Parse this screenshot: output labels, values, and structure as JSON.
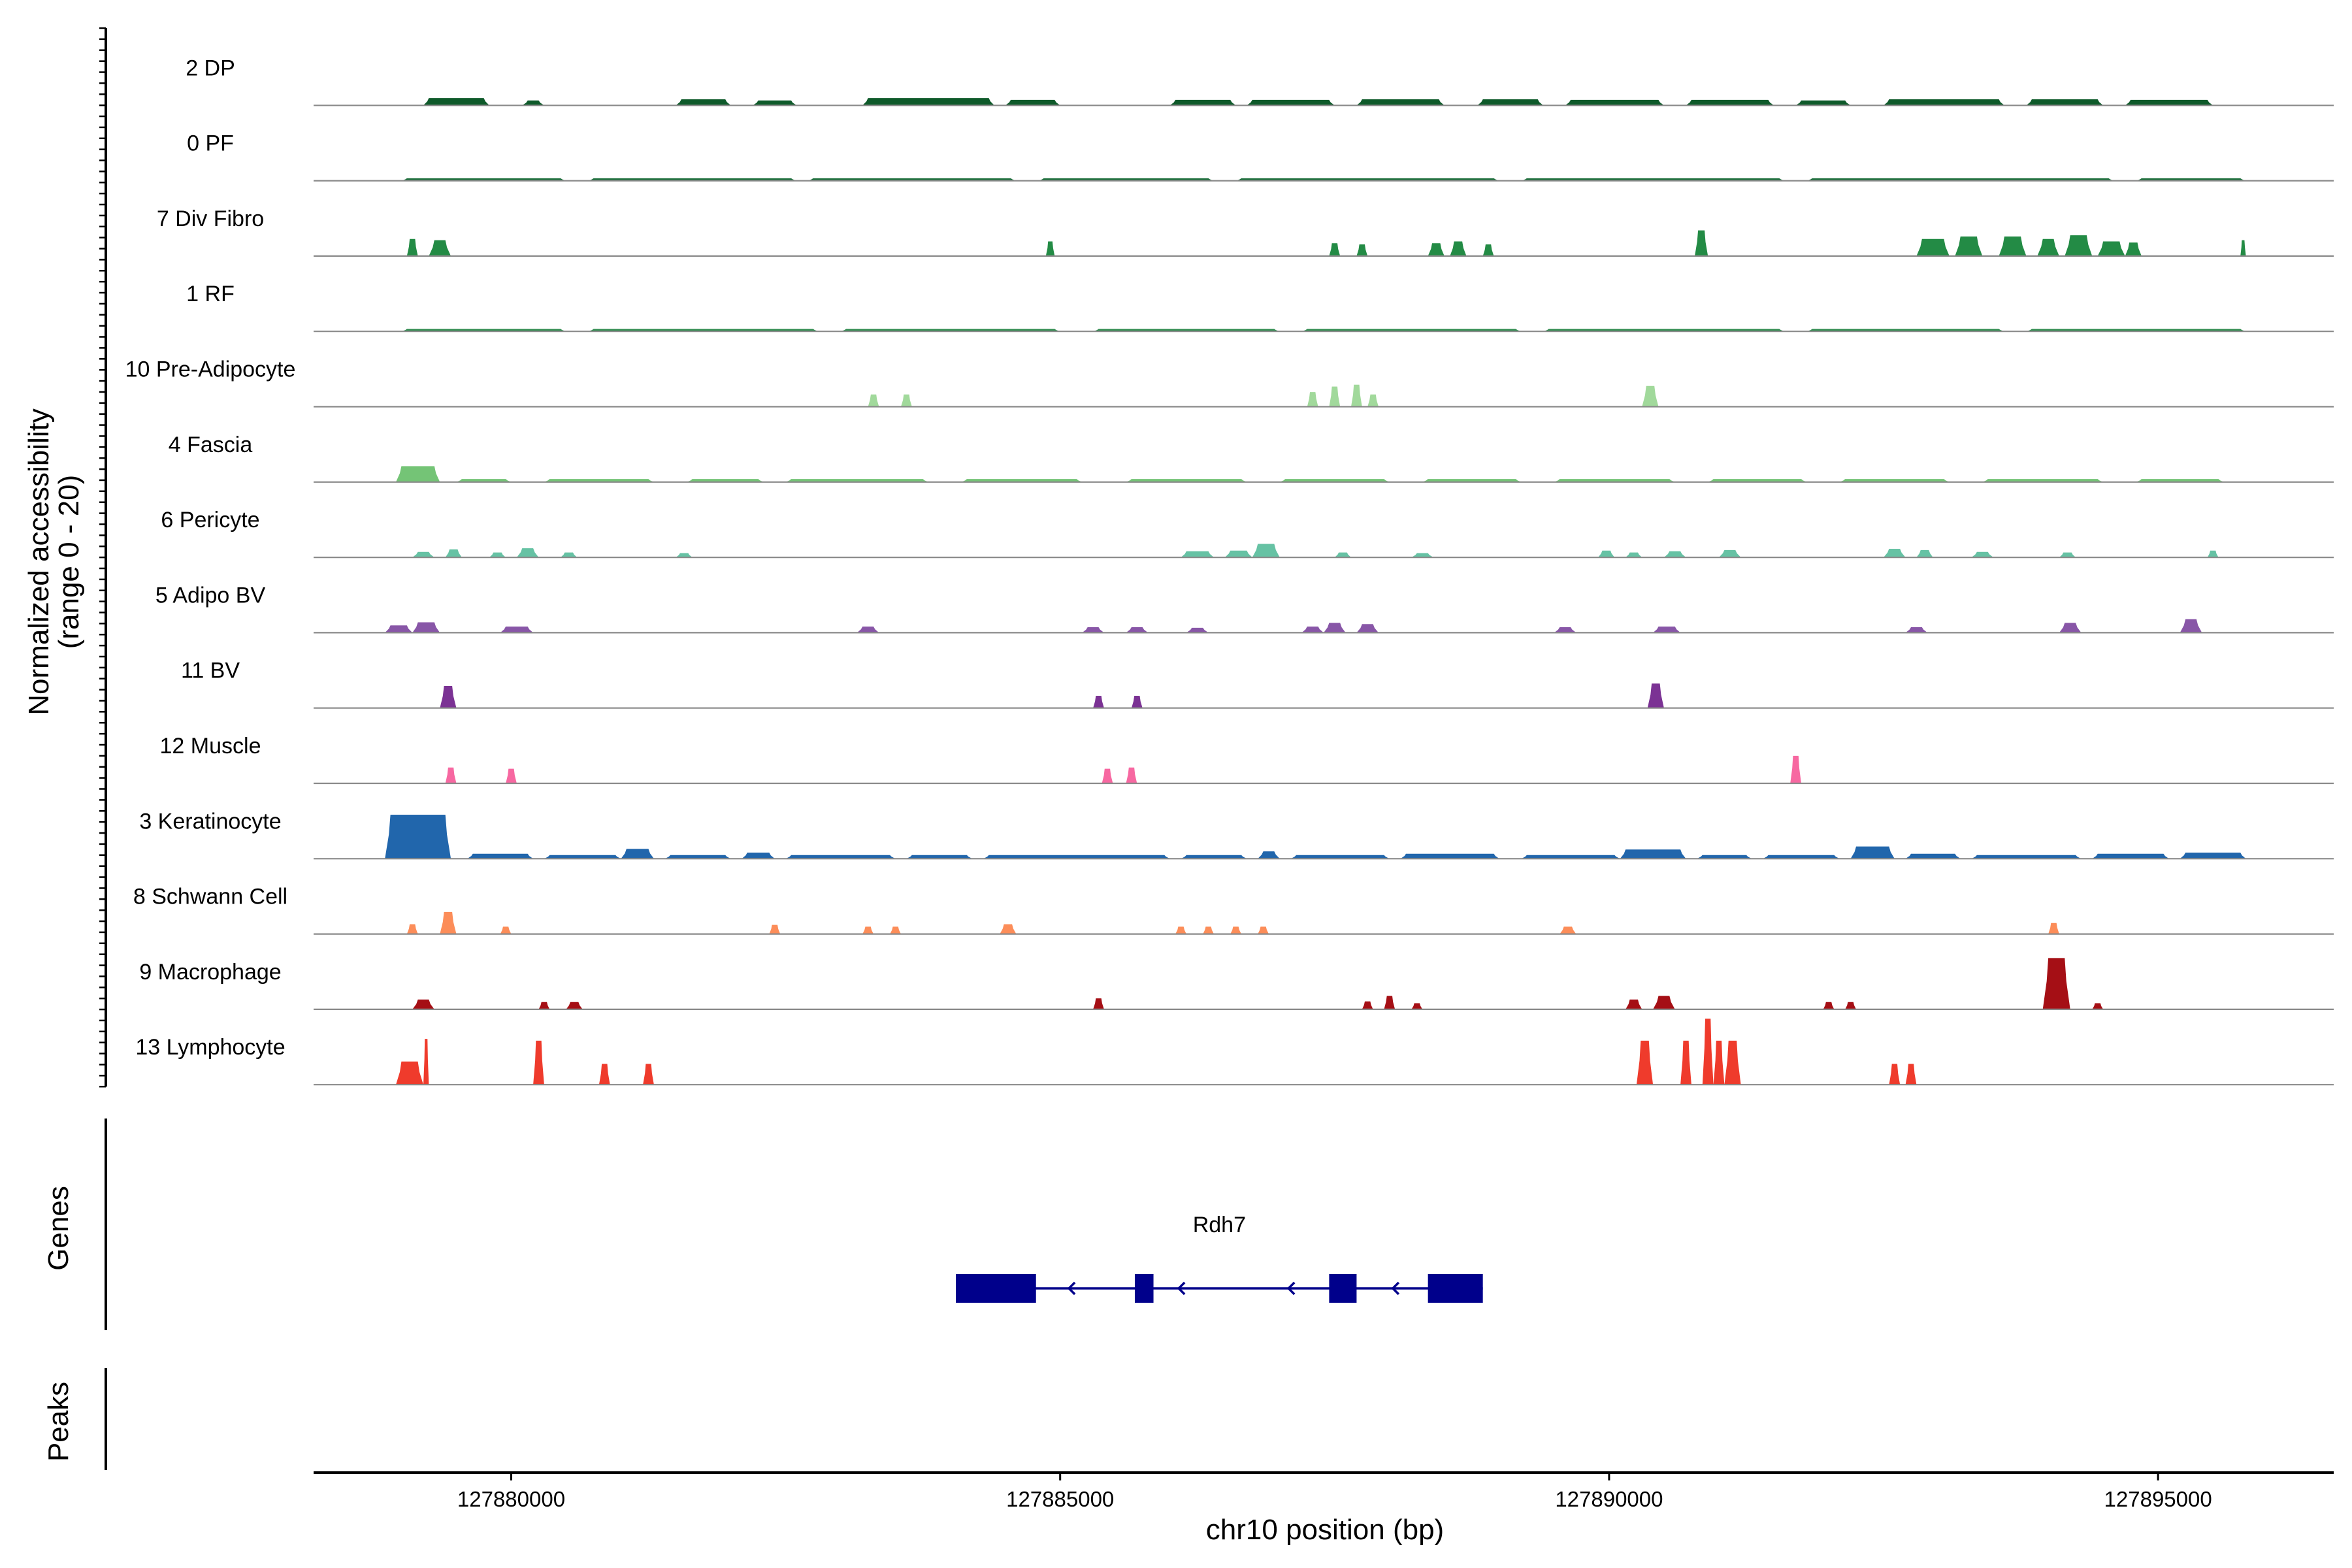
{
  "chart_data": {
    "type": "area",
    "chromosome": "chr10",
    "xlabel": "chr10 position (bp)",
    "ylabel_line1": "Normalized accessibility",
    "ylabel_line2": "(range 0 - 20)",
    "ylim": [
      0,
      20
    ],
    "xlim": [
      127878200,
      127896600
    ],
    "x_ticks": [
      127880000,
      127885000,
      127890000,
      127895000
    ],
    "tracks": [
      {
        "name": "2 DP",
        "color": "#0e5a2a",
        "regions": [
          [
            127879200,
            127879800,
            1.2
          ],
          [
            127880100,
            127880300,
            0.8
          ],
          [
            127881500,
            127882000,
            1.0
          ],
          [
            127882200,
            127882600,
            0.8
          ],
          [
            127883200,
            127884400,
            1.2
          ],
          [
            127884500,
            127885000,
            0.9
          ],
          [
            127886000,
            127886600,
            0.9
          ],
          [
            127886700,
            127887500,
            0.9
          ],
          [
            127887700,
            127888500,
            1.0
          ],
          [
            127888800,
            127889400,
            1.0
          ],
          [
            127889600,
            127890500,
            0.9
          ],
          [
            127890700,
            127891500,
            0.9
          ],
          [
            127891700,
            127892200,
            0.8
          ],
          [
            127892500,
            127893600,
            1.0
          ],
          [
            127893800,
            127894500,
            1.0
          ],
          [
            127894700,
            127895500,
            0.9
          ]
        ]
      },
      {
        "name": "0 PF",
        "color": "#1b6e3a",
        "regions": [
          [
            127879000,
            127880500,
            0.4
          ],
          [
            127880700,
            127882600,
            0.4
          ],
          [
            127882700,
            127884600,
            0.4
          ],
          [
            127884800,
            127886400,
            0.4
          ],
          [
            127886600,
            127889000,
            0.4
          ],
          [
            127889200,
            127891600,
            0.4
          ],
          [
            127891800,
            127894600,
            0.4
          ],
          [
            127894800,
            127895800,
            0.4
          ]
        ]
      },
      {
        "name": "7 Div Fibro",
        "color": "#238b45",
        "regions": [
          [
            127879050,
            127879150,
            2.8
          ],
          [
            127879250,
            127879450,
            2.6
          ],
          [
            127884870,
            127884950,
            2.4
          ],
          [
            127887450,
            127887550,
            2.1
          ],
          [
            127887700,
            127887800,
            1.9
          ],
          [
            127888350,
            127888500,
            2.1
          ],
          [
            127888550,
            127888700,
            2.4
          ],
          [
            127888850,
            127888950,
            1.9
          ],
          [
            127890780,
            127890900,
            4.2
          ],
          [
            127892800,
            127893100,
            2.8
          ],
          [
            127893150,
            127893400,
            3.2
          ],
          [
            127893550,
            127893800,
            3.2
          ],
          [
            127893900,
            127894100,
            2.8
          ],
          [
            127894150,
            127894400,
            3.4
          ],
          [
            127894450,
            127894700,
            2.4
          ],
          [
            127894700,
            127894850,
            2.2
          ],
          [
            127895750,
            127895800,
            2.6
          ]
        ]
      },
      {
        "name": "1 RF",
        "color": "#2e8b4e",
        "regions": [
          [
            127879000,
            127880500,
            0.4
          ],
          [
            127880700,
            127882800,
            0.4
          ],
          [
            127883000,
            127885000,
            0.4
          ],
          [
            127885300,
            127887000,
            0.4
          ],
          [
            127887200,
            127889200,
            0.4
          ],
          [
            127889400,
            127891600,
            0.4
          ],
          [
            127891800,
            127893600,
            0.4
          ],
          [
            127893800,
            127895800,
            0.4
          ]
        ]
      },
      {
        "name": "10 Pre-Adipocyte",
        "color": "#a1d99b",
        "regions": [
          [
            127883250,
            127883350,
            2.0
          ],
          [
            127883550,
            127883650,
            2.0
          ],
          [
            127887250,
            127887350,
            2.4
          ],
          [
            127887450,
            127887550,
            3.3
          ],
          [
            127887650,
            127887750,
            3.6
          ],
          [
            127887800,
            127887900,
            2.0
          ],
          [
            127890300,
            127890450,
            3.4
          ]
        ]
      },
      {
        "name": "4 Fascia",
        "color": "#74c476",
        "regions": [
          [
            127878950,
            127879350,
            2.6
          ],
          [
            127879500,
            127880000,
            0.5
          ],
          [
            127880300,
            127881300,
            0.5
          ],
          [
            127881600,
            127882300,
            0.5
          ],
          [
            127882500,
            127883800,
            0.5
          ],
          [
            127884100,
            127885200,
            0.5
          ],
          [
            127885600,
            127886700,
            0.5
          ],
          [
            127887000,
            127888000,
            0.5
          ],
          [
            127888300,
            127889200,
            0.5
          ],
          [
            127889500,
            127890600,
            0.5
          ],
          [
            127890900,
            127891800,
            0.5
          ],
          [
            127892100,
            127893100,
            0.5
          ],
          [
            127893400,
            127894500,
            0.5
          ],
          [
            127894800,
            127895600,
            0.5
          ]
        ]
      },
      {
        "name": "6 Pericyte",
        "color": "#66c2a4",
        "regions": [
          [
            127879100,
            127879300,
            0.9
          ],
          [
            127879400,
            127879550,
            1.3
          ],
          [
            127879800,
            127879950,
            0.8
          ],
          [
            127880050,
            127880250,
            1.5
          ],
          [
            127880450,
            127880600,
            0.8
          ],
          [
            127881500,
            127881650,
            0.7
          ],
          [
            127886100,
            127886400,
            1.0
          ],
          [
            127886500,
            127886750,
            1.1
          ],
          [
            127886750,
            127887000,
            2.2
          ],
          [
            127887500,
            127887650,
            0.8
          ],
          [
            127888200,
            127888400,
            0.7
          ],
          [
            127889900,
            127890050,
            1.1
          ],
          [
            127890150,
            127890300,
            0.8
          ],
          [
            127890500,
            127890700,
            1.0
          ],
          [
            127891000,
            127891200,
            1.2
          ],
          [
            127892500,
            127892700,
            1.4
          ],
          [
            127892800,
            127892950,
            1.2
          ],
          [
            127893300,
            127893500,
            0.9
          ],
          [
            127894100,
            127894250,
            0.8
          ],
          [
            127895450,
            127895550,
            1.1
          ]
        ]
      },
      {
        "name": "5 Adipo BV",
        "color": "#8856a7",
        "regions": [
          [
            127878850,
            127879100,
            1.2
          ],
          [
            127879100,
            127879350,
            1.7
          ],
          [
            127879900,
            127880200,
            1.0
          ],
          [
            127883150,
            127883350,
            1.0
          ],
          [
            127885200,
            127885400,
            0.9
          ],
          [
            127885600,
            127885800,
            0.9
          ],
          [
            127886150,
            127886350,
            0.8
          ],
          [
            127887200,
            127887400,
            1.0
          ],
          [
            127887400,
            127887600,
            1.6
          ],
          [
            127887700,
            127887900,
            1.4
          ],
          [
            127889500,
            127889700,
            0.9
          ],
          [
            127890400,
            127890650,
            1.0
          ],
          [
            127892700,
            127892900,
            0.9
          ],
          [
            127894100,
            127894300,
            1.6
          ],
          [
            127895200,
            127895400,
            2.2
          ]
        ]
      },
      {
        "name": "11 BV",
        "color": "#7b3294",
        "regions": [
          [
            127879350,
            127879500,
            3.6
          ],
          [
            127885300,
            127885400,
            2.0
          ],
          [
            127885650,
            127885750,
            2.0
          ],
          [
            127890350,
            127890500,
            4.0
          ]
        ]
      },
      {
        "name": "12 Muscle",
        "color": "#f768a1",
        "regions": [
          [
            127879400,
            127879500,
            2.6
          ],
          [
            127879950,
            127880050,
            2.4
          ],
          [
            127885380,
            127885480,
            2.4
          ],
          [
            127885600,
            127885700,
            2.6
          ],
          [
            127891650,
            127891750,
            4.5
          ]
        ]
      },
      {
        "name": "3 Keratinocyte",
        "color": "#2166ac",
        "regions": [
          [
            127878850,
            127879450,
            7.2
          ],
          [
            127879600,
            127880200,
            0.8
          ],
          [
            127880300,
            127881000,
            0.6
          ],
          [
            127881000,
            127881300,
            1.6
          ],
          [
            127881400,
            127882000,
            0.6
          ],
          [
            127882100,
            127882400,
            1.0
          ],
          [
            127882500,
            127883500,
            0.6
          ],
          [
            127883600,
            127884200,
            0.6
          ],
          [
            127884300,
            127886000,
            0.6
          ],
          [
            127886100,
            127886700,
            0.6
          ],
          [
            127886800,
            127887000,
            1.2
          ],
          [
            127887100,
            127888000,
            0.6
          ],
          [
            127888100,
            127889000,
            0.8
          ],
          [
            127889200,
            127890100,
            0.6
          ],
          [
            127890100,
            127890700,
            1.5
          ],
          [
            127890800,
            127891300,
            0.6
          ],
          [
            127891400,
            127892100,
            0.6
          ],
          [
            127892200,
            127892600,
            2.0
          ],
          [
            127892700,
            127893200,
            0.8
          ],
          [
            127893300,
            127894300,
            0.6
          ],
          [
            127894400,
            127895100,
            0.8
          ],
          [
            127895200,
            127895800,
            1.0
          ]
        ]
      },
      {
        "name": "8 Schwann Cell",
        "color": "#fc8d59",
        "regions": [
          [
            127879050,
            127879150,
            1.6
          ],
          [
            127879350,
            127879500,
            3.6
          ],
          [
            127879900,
            127880000,
            1.2
          ],
          [
            127882350,
            127882450,
            1.5
          ],
          [
            127883200,
            127883300,
            1.2
          ],
          [
            127883450,
            127883550,
            1.2
          ],
          [
            127884450,
            127884600,
            1.6
          ],
          [
            127886050,
            127886150,
            1.2
          ],
          [
            127886300,
            127886400,
            1.2
          ],
          [
            127886550,
            127886650,
            1.2
          ],
          [
            127886800,
            127886900,
            1.2
          ],
          [
            127889550,
            127889700,
            1.2
          ],
          [
            127894000,
            127894100,
            1.8
          ]
        ]
      },
      {
        "name": "9 Macrophage",
        "color": "#a50f15",
        "regions": [
          [
            127879100,
            127879300,
            1.6
          ],
          [
            127880250,
            127880350,
            1.2
          ],
          [
            127880500,
            127880650,
            1.2
          ],
          [
            127885300,
            127885400,
            1.8
          ],
          [
            127887750,
            127887850,
            1.3
          ],
          [
            127887950,
            127888050,
            2.2
          ],
          [
            127888200,
            127888300,
            1.0
          ],
          [
            127890150,
            127890300,
            1.6
          ],
          [
            127890400,
            127890600,
            2.2
          ],
          [
            127891950,
            127892050,
            1.2
          ],
          [
            127892150,
            127892250,
            1.2
          ],
          [
            127893950,
            127894200,
            8.4
          ],
          [
            127894400,
            127894500,
            1.0
          ]
        ]
      },
      {
        "name": "13 Lymphocyte",
        "color": "#ef3b2c",
        "regions": [
          [
            127878950,
            127879200,
            3.8
          ],
          [
            127879200,
            127879250,
            7.5
          ],
          [
            127880200,
            127880300,
            7.2
          ],
          [
            127880800,
            127880900,
            3.4
          ],
          [
            127881200,
            127881300,
            3.4
          ],
          [
            127890250,
            127890400,
            7.2
          ],
          [
            127890650,
            127890750,
            7.2
          ],
          [
            127890850,
            127890950,
            10.8
          ],
          [
            127890950,
            127891050,
            7.2
          ],
          [
            127891050,
            127891200,
            7.2
          ],
          [
            127892550,
            127892650,
            3.4
          ],
          [
            127892700,
            127892800,
            3.4
          ]
        ]
      }
    ],
    "genes_label": "Genes",
    "peaks_label": "Peaks",
    "gene": {
      "name": "Rdh7",
      "color": "#00008b",
      "strand": "-",
      "start": 127884050,
      "end": 127888850,
      "exons": [
        [
          127884050,
          127884780
        ],
        [
          127885680,
          127885850
        ],
        [
          127887450,
          127887700
        ],
        [
          127888350,
          127888850
        ]
      ],
      "arrows": [
        127885080,
        127886080,
        127887080,
        127888030
      ]
    }
  }
}
